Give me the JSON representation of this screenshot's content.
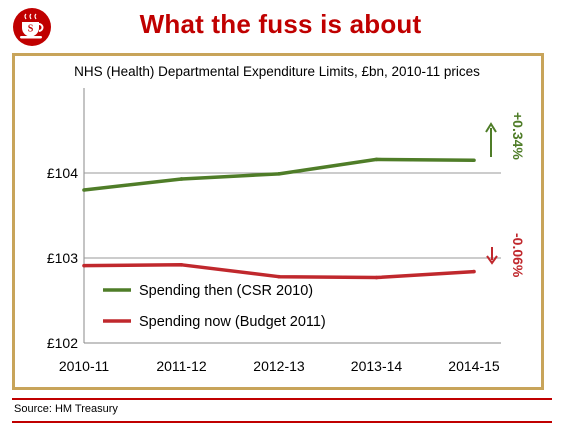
{
  "header": {
    "title": "What the fuss is about"
  },
  "logo": {
    "letter": "S",
    "colors": {
      "badge": "#c00000",
      "cup": "#ffffff"
    }
  },
  "chart_data": {
    "type": "line",
    "title": "NHS (Health) Departmental Expenditure Limits, £bn, 2010-11 prices",
    "categories": [
      "2010-11",
      "2011-12",
      "2012-13",
      "2013-14",
      "2014-15"
    ],
    "y_ticks": [
      "£102",
      "£103",
      "£104"
    ],
    "ylim": [
      102,
      105
    ],
    "grid": "horizontal",
    "legend": "bottom-left",
    "series": [
      {
        "name": "Spending then (CSR 2010)",
        "color": "#4f7d28",
        "values": [
          103.8,
          103.93,
          103.99,
          104.16,
          104.15
        ]
      },
      {
        "name": "Spending now (Budget 2011)",
        "color": "#c0282d",
        "values": [
          102.91,
          102.92,
          102.78,
          102.77,
          102.84
        ]
      }
    ],
    "annotations": [
      {
        "text": "+0.34%",
        "color": "#4f7d28",
        "arrow": "up"
      },
      {
        "text": "-0.06%",
        "color": "#c0282d",
        "arrow": "down"
      }
    ]
  },
  "footer": {
    "source": "Source: HM Treasury"
  }
}
